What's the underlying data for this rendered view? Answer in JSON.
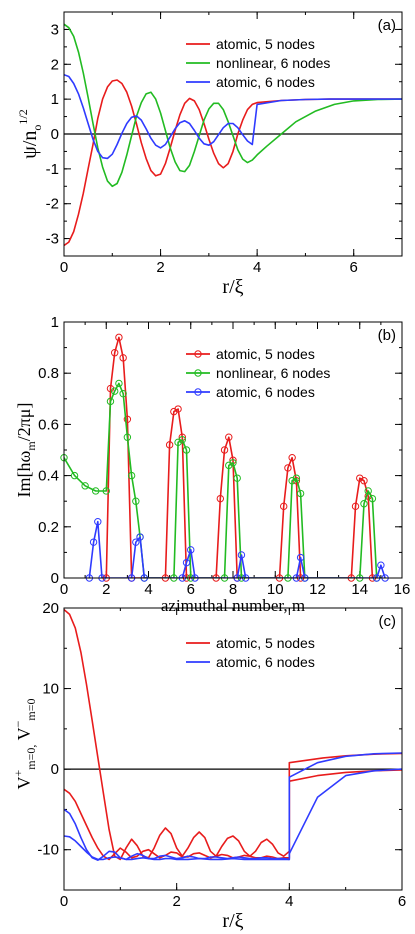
{
  "colors": {
    "red": "#e81c1c",
    "green": "#22bb22",
    "blue": "#2f3bff",
    "black": "#000000"
  },
  "chart_data": [
    {
      "panel_label": "(a)",
      "type": "line",
      "xlabel": "r/ξ",
      "ylabel": "ψ/n",
      "ylabel_sub": "o",
      "ylabel_sup": "1/2",
      "xlim": [
        0,
        7
      ],
      "ylim": [
        -3.5,
        3.5
      ],
      "xticks": [
        0,
        2,
        4,
        6
      ],
      "yticks": [
        -3,
        -2,
        -1,
        0,
        1,
        2,
        3
      ],
      "legend_position": "top-right",
      "series": [
        {
          "name": "atomic, 5 nodes",
          "color": "red",
          "x": [
            0,
            0.1,
            0.2,
            0.3,
            0.4,
            0.5,
            0.6,
            0.7,
            0.8,
            0.9,
            1.0,
            1.1,
            1.2,
            1.3,
            1.4,
            1.5,
            1.6,
            1.7,
            1.8,
            1.9,
            2.0,
            2.1,
            2.2,
            2.3,
            2.4,
            2.5,
            2.6,
            2.7,
            2.8,
            2.9,
            3.0,
            3.1,
            3.2,
            3.3,
            3.4,
            3.5,
            3.6,
            3.7,
            3.8,
            3.9,
            4.0,
            4.5,
            5.0,
            5.5,
            6.0,
            6.5,
            7.0
          ],
          "y": [
            -3.2,
            -3.1,
            -2.8,
            -2.3,
            -1.7,
            -1.0,
            -0.3,
            0.45,
            1.0,
            1.35,
            1.52,
            1.55,
            1.45,
            1.2,
            0.8,
            0.3,
            -0.25,
            -0.7,
            -1.05,
            -1.2,
            -1.15,
            -0.85,
            -0.4,
            0.1,
            0.55,
            0.88,
            1.02,
            0.95,
            0.7,
            0.3,
            -0.15,
            -0.55,
            -0.85,
            -0.97,
            -0.85,
            -0.5,
            0.0,
            0.4,
            0.7,
            0.85,
            0.9,
            0.96,
            0.99,
            1.0,
            1.0,
            1.0,
            1.0
          ]
        },
        {
          "name": "nonlinear, 6 nodes",
          "color": "green",
          "x": [
            0,
            0.1,
            0.2,
            0.3,
            0.4,
            0.5,
            0.6,
            0.7,
            0.8,
            0.9,
            1.0,
            1.1,
            1.2,
            1.3,
            1.4,
            1.5,
            1.6,
            1.7,
            1.8,
            1.9,
            2.0,
            2.1,
            2.2,
            2.3,
            2.4,
            2.5,
            2.6,
            2.7,
            2.8,
            2.9,
            3.0,
            3.1,
            3.2,
            3.3,
            3.4,
            3.5,
            3.6,
            3.7,
            3.8,
            3.9,
            4.0,
            4.2,
            4.5,
            4.8,
            5.2,
            5.6,
            6.0,
            6.5,
            7.0
          ],
          "y": [
            3.15,
            3.05,
            2.8,
            2.35,
            1.75,
            1.05,
            0.3,
            -0.4,
            -0.95,
            -1.35,
            -1.5,
            -1.42,
            -1.1,
            -0.6,
            -0.05,
            0.5,
            0.9,
            1.15,
            1.2,
            1.0,
            0.6,
            0.1,
            -0.4,
            -0.8,
            -1.05,
            -1.08,
            -0.9,
            -0.5,
            -0.05,
            0.4,
            0.72,
            0.88,
            0.88,
            0.7,
            0.35,
            -0.05,
            -0.45,
            -0.72,
            -0.82,
            -0.75,
            -0.6,
            -0.35,
            0.0,
            0.35,
            0.65,
            0.85,
            0.95,
            0.99,
            1.0
          ]
        },
        {
          "name": "atomic, 6 nodes",
          "color": "blue",
          "x": [
            0,
            0.1,
            0.2,
            0.3,
            0.4,
            0.5,
            0.6,
            0.7,
            0.8,
            0.9,
            1.0,
            1.1,
            1.2,
            1.3,
            1.4,
            1.5,
            1.6,
            1.7,
            1.8,
            1.9,
            2.0,
            2.1,
            2.2,
            2.3,
            2.4,
            2.5,
            2.6,
            2.7,
            2.8,
            2.9,
            3.0,
            3.1,
            3.2,
            3.3,
            3.4,
            3.5,
            3.6,
            3.7,
            3.8,
            3.9,
            4.0,
            4.5,
            5.0,
            5.5,
            6.0,
            6.5,
            7.0
          ],
          "y": [
            1.7,
            1.65,
            1.45,
            1.15,
            0.75,
            0.3,
            -0.15,
            -0.5,
            -0.68,
            -0.7,
            -0.58,
            -0.3,
            0.02,
            0.3,
            0.48,
            0.52,
            0.4,
            0.15,
            -0.12,
            -0.32,
            -0.4,
            -0.3,
            -0.08,
            0.15,
            0.32,
            0.38,
            0.3,
            0.1,
            -0.12,
            -0.28,
            -0.32,
            -0.22,
            -0.02,
            0.18,
            0.3,
            0.3,
            0.18,
            -0.02,
            -0.2,
            -0.3,
            0.85,
            0.96,
            0.99,
            1.0,
            1.0,
            1.0,
            1.0
          ]
        }
      ]
    },
    {
      "panel_label": "(b)",
      "type": "line",
      "xlabel": "azimuthal number, m",
      "ylabel": "Im[hω",
      "ylabel_sub": "m",
      "ylabel_end": "/2πμ]",
      "xlim": [
        0,
        16
      ],
      "ylim": [
        0,
        1
      ],
      "xticks": [
        0,
        2,
        4,
        6,
        8,
        10,
        12,
        14,
        16
      ],
      "yticks": [
        0,
        0.2,
        0.4,
        0.6,
        0.8,
        1
      ],
      "yticklabels": [
        "0",
        "0.2",
        "0.4",
        "0.6",
        "0.8",
        "1"
      ],
      "legend_position": "top-right",
      "series": [
        {
          "name": "atomic, 5 nodes",
          "color": "red",
          "x": [
            2.0,
            2.2,
            2.4,
            2.6,
            2.8,
            3.0,
            3.2,
            4.8,
            5.0,
            5.2,
            5.4,
            5.6,
            5.8,
            7.2,
            7.4,
            7.6,
            7.8,
            8.0,
            8.2,
            10.2,
            10.4,
            10.6,
            10.8,
            11.0,
            11.2,
            13.6,
            13.8,
            14.0,
            14.2,
            14.4,
            14.6
          ],
          "y": [
            0.0,
            0.74,
            0.88,
            0.94,
            0.86,
            0.62,
            0.0,
            0.0,
            0.52,
            0.65,
            0.66,
            0.55,
            0.0,
            0.0,
            0.31,
            0.5,
            0.55,
            0.46,
            0.0,
            0.0,
            0.28,
            0.43,
            0.47,
            0.38,
            0.0,
            0.0,
            0.28,
            0.39,
            0.38,
            0.32,
            0.0
          ]
        },
        {
          "name": "nonlinear, 6 nodes",
          "color": "green",
          "x": [
            0.0,
            0.5,
            1.0,
            1.5,
            2.0,
            2.2,
            2.4,
            2.6,
            2.8,
            3.0,
            3.2,
            3.4,
            3.6,
            3.8,
            5.2,
            5.4,
            5.6,
            5.8,
            6.0,
            7.6,
            7.8,
            8.0,
            8.2,
            8.4,
            10.6,
            10.8,
            11.0,
            11.2,
            11.4,
            14.0,
            14.2,
            14.4,
            14.6,
            14.8
          ],
          "y": [
            0.47,
            0.4,
            0.36,
            0.34,
            0.34,
            0.69,
            0.73,
            0.76,
            0.72,
            0.55,
            0.4,
            0.3,
            0.16,
            0.0,
            0.0,
            0.53,
            0.54,
            0.5,
            0.0,
            0.0,
            0.44,
            0.45,
            0.39,
            0.0,
            0.0,
            0.38,
            0.39,
            0.33,
            0.0,
            0.0,
            0.29,
            0.34,
            0.31,
            0.0
          ]
        },
        {
          "name": "atomic, 6 nodes",
          "color": "blue",
          "x": [
            1.2,
            1.4,
            1.6,
            1.8,
            3.2,
            3.4,
            3.6,
            3.8,
            5.6,
            5.8,
            6.0,
            6.2,
            8.2,
            8.4,
            8.6,
            11.0,
            11.2,
            11.4,
            14.8,
            15.0,
            15.2
          ],
          "y": [
            0.0,
            0.14,
            0.22,
            0.0,
            0.0,
            0.14,
            0.16,
            0.0,
            0.0,
            0.06,
            0.11,
            0.0,
            0.0,
            0.09,
            0.0,
            0.0,
            0.08,
            0.0,
            0.0,
            0.05,
            0.0
          ]
        }
      ]
    },
    {
      "panel_label": "(c)",
      "type": "line",
      "xlabel": "r/ξ",
      "ylabel_a": "V",
      "ylabel_a_sup": "+",
      "ylabel_a_sub": "m=0,",
      "ylabel_b": "V",
      "ylabel_b_sup": "−",
      "ylabel_b_sub": "m=0",
      "xlim": [
        0,
        6
      ],
      "ylim": [
        -15,
        20
      ],
      "xticks": [
        0,
        2,
        4,
        6
      ],
      "yticks": [
        -10,
        0,
        10,
        20
      ],
      "legend_position": "top-right",
      "legend": [
        {
          "name": "atomic, 5 nodes",
          "color": "red"
        },
        {
          "name": "atomic, 6 nodes",
          "color": "blue"
        }
      ],
      "series": [
        {
          "color": "red",
          "x": [
            0,
            0.1,
            0.2,
            0.3,
            0.4,
            0.5,
            0.6,
            0.7,
            0.8,
            0.9,
            1.0,
            1.1,
            1.2,
            1.3,
            1.4,
            1.5,
            1.6,
            1.7,
            1.8,
            1.9,
            2.0,
            2.1,
            2.2,
            2.3,
            2.4,
            2.5,
            2.6,
            2.7,
            2.8,
            2.9,
            3.0,
            3.1,
            3.2,
            3.3,
            3.4,
            3.5,
            3.6,
            3.7,
            3.8,
            3.9,
            4.0,
            4.0,
            4.3,
            4.6,
            5.0,
            5.5,
            6.0
          ],
          "y": [
            19.8,
            19.2,
            17.5,
            14.5,
            10.5,
            6.0,
            1.5,
            -3.0,
            -7.5,
            -10.8,
            -11.2,
            -9.8,
            -8.7,
            -9.5,
            -10.8,
            -11.0,
            -9.8,
            -8.2,
            -7.3,
            -8.0,
            -9.8,
            -10.8,
            -9.8,
            -8.5,
            -7.8,
            -8.5,
            -10.2,
            -10.8,
            -9.6,
            -8.6,
            -8.3,
            -8.9,
            -10.2,
            -10.8,
            -10.2,
            -9.1,
            -8.7,
            -9.3,
            -10.4,
            -10.8,
            -10.2,
            0.8,
            1.1,
            1.4,
            1.65,
            1.85,
            1.95
          ]
        },
        {
          "color": "red",
          "x": [
            0,
            0.1,
            0.2,
            0.3,
            0.4,
            0.5,
            0.6,
            0.7,
            0.8,
            0.9,
            1.0,
            1.1,
            1.2,
            1.3,
            1.4,
            1.5,
            1.6,
            1.7,
            1.8,
            1.9,
            2.0,
            2.1,
            2.2,
            2.3,
            2.4,
            2.5,
            2.6,
            2.7,
            2.8,
            2.9,
            3.0,
            3.1,
            3.2,
            3.3,
            3.4,
            3.5,
            3.6,
            3.7,
            3.8,
            3.9,
            4.0,
            4.0,
            4.5,
            5.0,
            5.5,
            6.0
          ],
          "y": [
            -2.5,
            -3.0,
            -4.0,
            -5.5,
            -7.0,
            -8.5,
            -9.8,
            -10.8,
            -11.2,
            -10.5,
            -9.8,
            -10.3,
            -11.0,
            -10.8,
            -10.2,
            -10.0,
            -10.5,
            -11.0,
            -10.7,
            -10.3,
            -10.4,
            -10.9,
            -10.9,
            -10.5,
            -10.4,
            -10.7,
            -11.0,
            -10.8,
            -10.6,
            -10.7,
            -11.0,
            -10.9,
            -10.7,
            -10.8,
            -11.0,
            -11.0,
            -10.8,
            -10.9,
            -11.1,
            -11.0,
            -11.0,
            -1.5,
            -0.8,
            -0.4,
            -0.2,
            -0.1
          ]
        },
        {
          "color": "blue",
          "x": [
            0,
            0.1,
            0.2,
            0.3,
            0.4,
            0.5,
            0.6,
            0.7,
            0.8,
            0.9,
            1.0,
            1.1,
            1.2,
            1.3,
            1.4,
            1.5,
            1.6,
            1.7,
            1.8,
            1.9,
            2.0,
            2.1,
            2.2,
            2.3,
            2.4,
            2.5,
            2.6,
            2.7,
            2.8,
            2.9,
            3.0,
            3.1,
            3.2,
            3.3,
            3.4,
            3.5,
            3.6,
            3.7,
            3.8,
            3.9,
            4.0,
            4.0,
            4.5,
            5.0,
            5.5,
            6.0
          ],
          "y": [
            -5.0,
            -5.5,
            -6.8,
            -8.5,
            -10.0,
            -11.0,
            -11.3,
            -10.8,
            -10.2,
            -10.3,
            -11.0,
            -11.2,
            -10.8,
            -10.5,
            -10.7,
            -11.1,
            -11.1,
            -10.8,
            -10.7,
            -10.9,
            -11.1,
            -11.0,
            -10.8,
            -10.9,
            -11.1,
            -11.1,
            -10.9,
            -10.9,
            -11.0,
            -11.1,
            -11.0,
            -10.9,
            -11.0,
            -11.1,
            -11.1,
            -11.0,
            -11.0,
            -11.1,
            -11.1,
            -11.1,
            -11.2,
            -1.0,
            0.8,
            1.6,
            1.9,
            2.0
          ]
        },
        {
          "color": "blue",
          "x": [
            0,
            0.1,
            0.2,
            0.3,
            0.4,
            0.5,
            0.6,
            0.7,
            0.8,
            0.9,
            1.0,
            1.1,
            1.2,
            1.3,
            1.4,
            1.5,
            1.6,
            1.7,
            1.8,
            1.9,
            2.0,
            2.2,
            2.4,
            2.6,
            2.8,
            3.0,
            3.2,
            3.4,
            3.6,
            3.8,
            4.0,
            4.0,
            4.5,
            5.0,
            5.5,
            6.0
          ],
          "y": [
            -8.3,
            -8.4,
            -8.9,
            -9.6,
            -10.3,
            -10.9,
            -11.2,
            -11.2,
            -11.0,
            -10.9,
            -11.0,
            -11.2,
            -11.2,
            -11.1,
            -11.0,
            -11.1,
            -11.2,
            -11.2,
            -11.1,
            -11.1,
            -11.2,
            -11.2,
            -11.1,
            -11.2,
            -11.2,
            -11.1,
            -11.2,
            -11.2,
            -11.2,
            -11.2,
            -11.2,
            -10.5,
            -3.5,
            -0.8,
            -0.2,
            0.0
          ]
        }
      ]
    }
  ]
}
